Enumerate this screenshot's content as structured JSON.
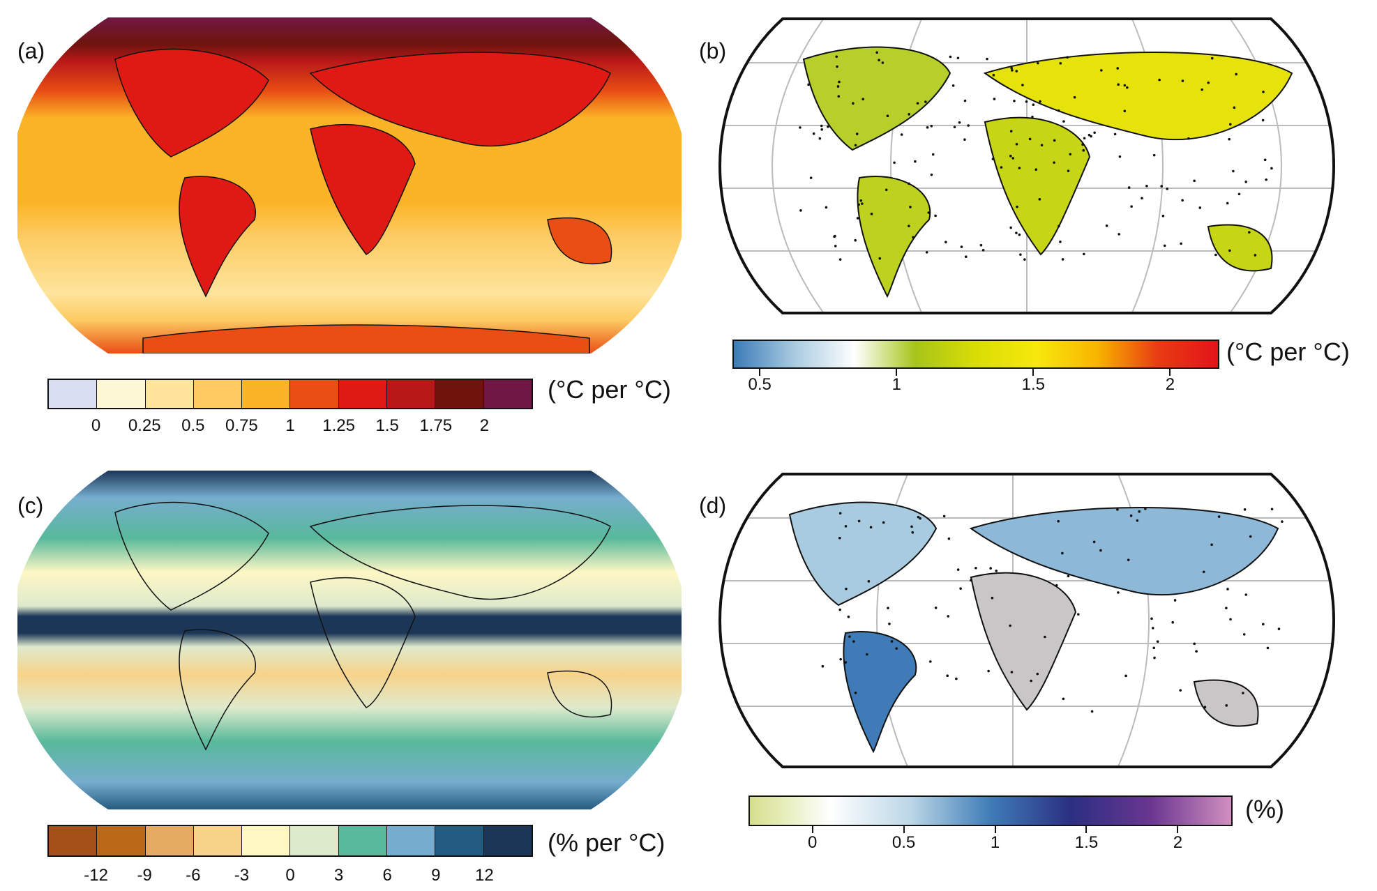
{
  "panels": [
    {
      "label": "(a)",
      "colorbar": {
        "type": "discrete",
        "unit": "(°C per °C)",
        "ticks": [
          "0",
          "0.25",
          "0.5",
          "0.75",
          "1",
          "1.25",
          "1.5",
          "1.75",
          "2"
        ],
        "colors": [
          "#d9dff0",
          "#fef7d6",
          "#fee49c",
          "#fdcb62",
          "#fbb427",
          "#e94e14",
          "#df1a15",
          "#b91818",
          "#6f140d",
          "#6f1843"
        ]
      }
    },
    {
      "label": "(b)",
      "colorbar": {
        "type": "continuous",
        "unit": "(°C per °C)",
        "ticks": [
          "0.5",
          "1",
          "1.5",
          "2"
        ],
        "range": [
          0.4,
          2.18
        ],
        "colors": [
          "#3b7bb7",
          "#a9cbe0",
          "#ffffff",
          "#a6c51a",
          "#d9dd05",
          "#f7e80c",
          "#f8b500",
          "#e83c12",
          "#e3131b"
        ]
      }
    },
    {
      "label": "(c)",
      "colorbar": {
        "type": "discrete",
        "unit": "(% per °C)",
        "ticks": [
          "-12",
          "-9",
          "-6",
          "-3",
          "0",
          "3",
          "6",
          "9",
          "12"
        ],
        "colors": [
          "#a65019",
          "#bb6818",
          "#e6ab62",
          "#f8d38a",
          "#fef7c4",
          "#deeacc",
          "#58b99b",
          "#76adce",
          "#245b80",
          "#1c3658"
        ]
      }
    },
    {
      "label": "(d)",
      "colorbar": {
        "type": "continuous",
        "unit": "(%)",
        "ticks": [
          "0",
          "0.5",
          "1",
          "1.5",
          "2"
        ],
        "range": [
          -0.35,
          2.3
        ],
        "colors": [
          "#d4e08a",
          "#ffffff",
          "#bcd7e7",
          "#3f7cb7",
          "#2b2f83",
          "#6a3690",
          "#d08fc0"
        ]
      }
    }
  ]
}
